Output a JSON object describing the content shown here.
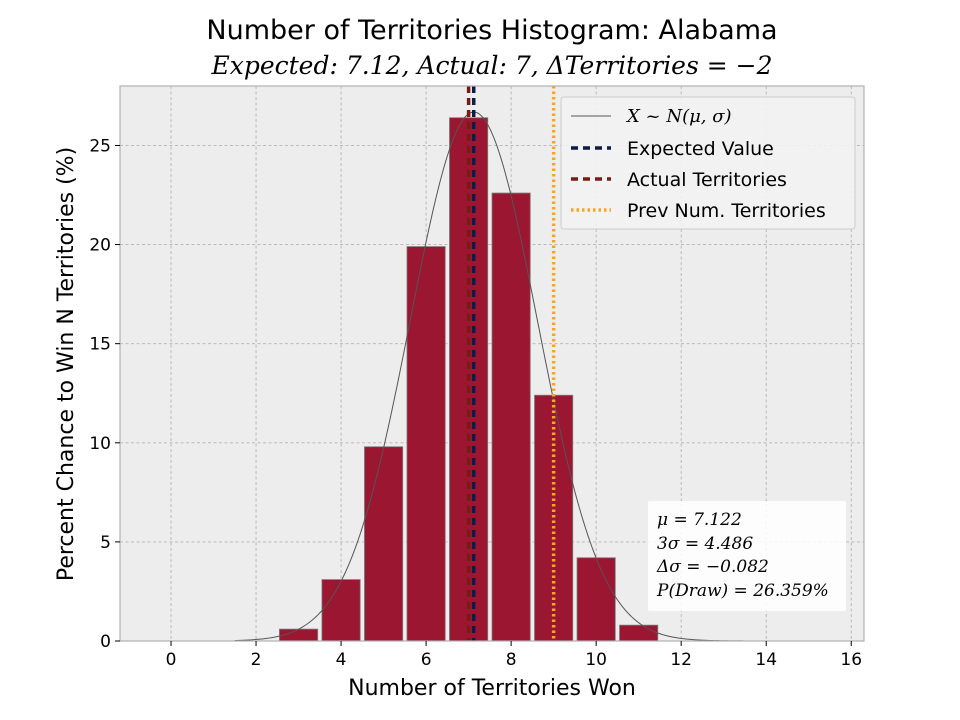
{
  "chart_data": {
    "type": "bar",
    "title": "Number of Territories Histogram: Alabama",
    "subtitle": "Expected: 7.12, Actual: 7, ΔTerritories = −2",
    "xlabel": "Number of Territories Won",
    "ylabel": "Percent Chance to Win N Territories (%)",
    "xlim": [
      -1.2,
      16.3
    ],
    "ylim": [
      0,
      28
    ],
    "xticks": [
      0,
      2,
      4,
      6,
      8,
      10,
      12,
      14,
      16
    ],
    "yticks": [
      0,
      5,
      10,
      15,
      20,
      25
    ],
    "grid": true,
    "legend_position": "top-right",
    "bars": {
      "x": [
        3,
        4,
        5,
        6,
        7,
        8,
        9,
        10,
        11
      ],
      "values": [
        0.6,
        3.1,
        9.8,
        19.9,
        26.4,
        22.6,
        12.4,
        4.2,
        0.8
      ],
      "color": "#9b1631"
    },
    "normal_curve": {
      "mu": 7.122,
      "sigma": 1.495,
      "label": "X ~ N(μ, σ)",
      "color": "#555555"
    },
    "vlines": [
      {
        "label": "Expected Value",
        "x": 7.12,
        "color": "#0d1b47",
        "style": "dashed"
      },
      {
        "label": "Actual Territories",
        "x": 7,
        "color": "#7a1a12",
        "style": "dashed"
      },
      {
        "label": "Prev Num. Territories",
        "x": 9,
        "color": "#f5a623",
        "style": "dotted"
      }
    ],
    "stats_box": [
      "μ = 7.122",
      "3σ = 4.486",
      "Δσ = −0.082",
      "P(Draw) = 26.359%"
    ]
  }
}
